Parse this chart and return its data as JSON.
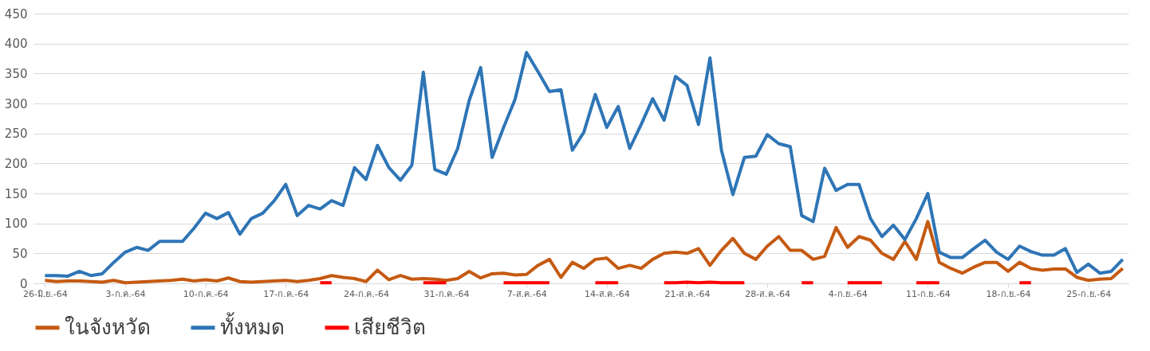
{
  "chart_data": {
    "type": "line",
    "categories": [
      "26-มิ.ย.-64",
      null,
      null,
      null,
      null,
      null,
      null,
      "3-ก.ค.-64",
      null,
      null,
      null,
      null,
      null,
      null,
      "10-ก.ค.-64",
      null,
      null,
      null,
      null,
      null,
      null,
      "17-ก.ค.-64",
      null,
      null,
      null,
      null,
      null,
      null,
      "24-ก.ค.-64",
      null,
      null,
      null,
      null,
      null,
      null,
      "31-ก.ค.-64",
      null,
      null,
      null,
      null,
      null,
      null,
      "7-ส.ค.-64",
      null,
      null,
      null,
      null,
      null,
      null,
      "14-ส.ค.-64",
      null,
      null,
      null,
      null,
      null,
      null,
      "21-ส.ค.-64",
      null,
      null,
      null,
      null,
      null,
      null,
      "28-ส.ค.-64",
      null,
      null,
      null,
      null,
      null,
      null,
      "4-ก.ย.-64",
      null,
      null,
      null,
      null,
      null,
      null,
      "11-ก.ย.-64",
      null,
      null,
      null,
      null,
      null,
      null,
      "18-ก.ย.-64",
      null,
      null,
      null,
      null,
      null,
      null,
      "25-ก.ย.-64",
      null,
      null,
      null
    ],
    "series": [
      {
        "name": "ในจังหวัด",
        "color": "#c55a11",
        "values": [
          5,
          3,
          4,
          4,
          3,
          2,
          5,
          1,
          2,
          3,
          4,
          5,
          7,
          4,
          6,
          4,
          9,
          3,
          2,
          3,
          4,
          5,
          3,
          5,
          8,
          13,
          10,
          8,
          3,
          22,
          6,
          13,
          7,
          8,
          7,
          5,
          8,
          20,
          9,
          16,
          17,
          14,
          15,
          30,
          40,
          10,
          35,
          25,
          40,
          42,
          25,
          30,
          25,
          40,
          50,
          52,
          50,
          58,
          30,
          55,
          75,
          50,
          40,
          62,
          78,
          55,
          55,
          40,
          45,
          93,
          60,
          78,
          72,
          50,
          40,
          70,
          40,
          103,
          35,
          25,
          17,
          27,
          35,
          35,
          20,
          35,
          25,
          22,
          24,
          24,
          10,
          5,
          7,
          8,
          25
        ]
      },
      {
        "name": "ทั้งหมด",
        "color": "#2e75b6",
        "values": [
          13,
          13,
          12,
          20,
          13,
          16,
          35,
          52,
          60,
          55,
          70,
          70,
          70,
          92,
          117,
          108,
          118,
          82,
          108,
          117,
          138,
          165,
          113,
          130,
          124,
          138,
          130,
          193,
          173,
          230,
          193,
          172,
          197,
          352,
          190,
          182,
          225,
          305,
          360,
          210,
          260,
          307,
          385,
          353,
          320,
          323,
          222,
          252,
          315,
          260,
          295,
          225,
          265,
          308,
          272,
          345,
          330,
          265,
          376,
          222,
          148,
          210,
          212,
          248,
          233,
          228,
          113,
          103,
          192,
          155,
          165,
          165,
          108,
          78,
          97,
          73,
          108,
          150,
          52,
          43,
          43,
          58,
          72,
          52,
          40,
          62,
          53,
          47,
          47,
          58,
          18,
          32,
          17,
          20,
          40
        ]
      },
      {
        "name": "เสียชีวิต",
        "color": "#ff0000",
        "values": [
          null,
          null,
          null,
          null,
          null,
          null,
          null,
          null,
          null,
          null,
          null,
          null,
          null,
          null,
          null,
          null,
          null,
          null,
          null,
          null,
          null,
          null,
          null,
          null,
          1,
          1,
          null,
          null,
          null,
          null,
          null,
          null,
          null,
          1,
          1,
          1,
          null,
          null,
          null,
          null,
          1,
          1,
          1,
          1,
          1,
          null,
          null,
          null,
          1,
          1,
          1,
          null,
          null,
          null,
          1,
          1,
          2,
          1,
          2,
          1,
          1,
          1,
          null,
          null,
          null,
          null,
          1,
          1,
          null,
          null,
          1,
          1,
          1,
          1,
          null,
          null,
          1,
          1,
          1,
          null,
          null,
          null,
          null,
          null,
          null,
          1,
          1,
          null,
          null,
          null,
          null,
          null,
          null,
          null,
          null
        ]
      }
    ],
    "ylim": [
      0,
      450
    ],
    "yticks": [
      0,
      50,
      100,
      150,
      200,
      250,
      300,
      350,
      400,
      450
    ],
    "grid": "y",
    "legend": "bottom",
    "marker": "none",
    "line_style": "solid"
  }
}
